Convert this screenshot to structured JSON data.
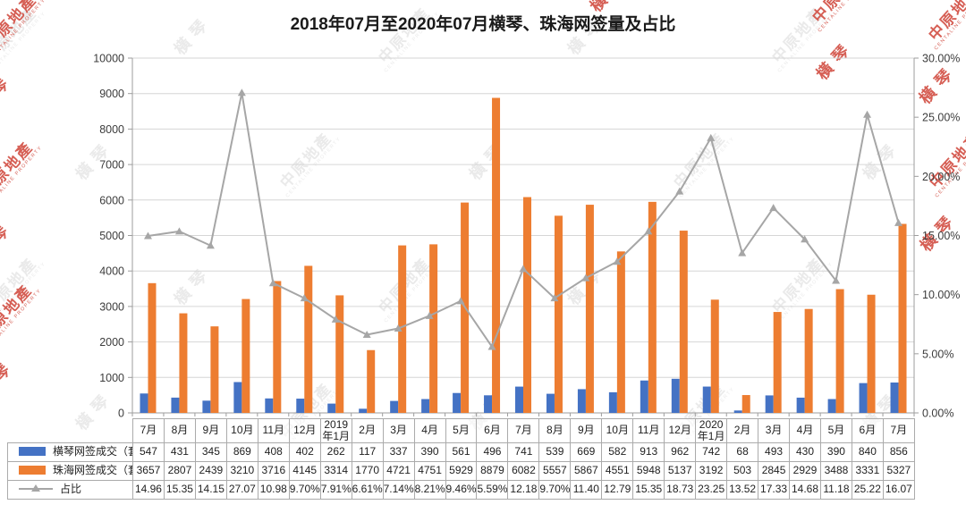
{
  "title": "2018年07月至2020年07月横琴、珠海网签量及占比",
  "watermark": {
    "brand": "中原地產",
    "brand_sub": "CENTALINE PROPERTY",
    "extra": "橫琴"
  },
  "colors": {
    "hengqin_bar": "#4472c4",
    "zhuhai_bar": "#ed7d31",
    "ratio_line": "#a6a6a6",
    "grid": "#d6d6d6",
    "axis": "#9d9d9d",
    "axis_text": "#3c3c3c",
    "watermark_gray": "#eaeaea",
    "watermark_red": "#cf4438"
  },
  "chart_data": {
    "type": "bar",
    "title": "2018年07月至2020年07月横琴、珠海网签量及占比",
    "categories": [
      "7月",
      "8月",
      "9月",
      "10月",
      "11月",
      "12月",
      "2019年1月",
      "2月",
      "3月",
      "4月",
      "5月",
      "6月",
      "7月",
      "8月",
      "9月",
      "10月",
      "11月",
      "12月",
      "2020年1月",
      "2月",
      "3月",
      "4月",
      "5月",
      "6月",
      "7月"
    ],
    "series": [
      {
        "name": "横琴网签成交（套）",
        "type": "bar",
        "color_key": "hengqin_bar",
        "values": [
          547,
          431,
          345,
          869,
          408,
          402,
          262,
          117,
          337,
          390,
          561,
          496,
          741,
          539,
          669,
          582,
          913,
          962,
          742,
          68,
          493,
          430,
          390,
          840,
          856
        ]
      },
      {
        "name": "珠海网签成交（套）",
        "type": "bar",
        "color_key": "zhuhai_bar",
        "values": [
          3657,
          2807,
          2439,
          3210,
          3716,
          4145,
          3314,
          1770,
          4721,
          4751,
          5929,
          8879,
          6082,
          5557,
          5867,
          4551,
          5948,
          5137,
          3192,
          503,
          2845,
          2929,
          3488,
          3331,
          5327
        ]
      },
      {
        "name": "占比",
        "type": "line",
        "axis": "right",
        "color_key": "ratio_line",
        "values": [
          14.96,
          15.35,
          14.15,
          27.07,
          10.98,
          9.7,
          7.91,
          6.61,
          7.14,
          8.21,
          9.46,
          5.59,
          12.18,
          9.7,
          11.4,
          12.79,
          15.35,
          18.73,
          23.25,
          13.52,
          17.33,
          14.68,
          11.18,
          25.22,
          16.07
        ],
        "values_display": [
          "14.96",
          "15.35",
          "14.15",
          "27.07",
          "10.98",
          "9.70%",
          "7.91%",
          "6.61%",
          "7.14%",
          "8.21%",
          "9.46%",
          "5.59%",
          "12.18",
          "9.70%",
          "11.40",
          "12.79",
          "15.35",
          "18.73",
          "23.25",
          "13.52",
          "17.33",
          "14.68",
          "11.18",
          "25.22",
          "16.07"
        ]
      }
    ],
    "left_axis": {
      "min": 0,
      "max": 10000,
      "step": 1000,
      "ticks": [
        "10000",
        "9000",
        "8000",
        "7000",
        "6000",
        "5000",
        "4000",
        "3000",
        "2000",
        "1000",
        "0"
      ]
    },
    "right_axis": {
      "min": 0,
      "max": 30,
      "step": 5,
      "ticks": [
        "30.00%",
        "25.00%",
        "20.00%",
        "15.00%",
        "10.00%",
        "5.00%",
        "0.00%"
      ]
    },
    "grid": "horizontal",
    "legend_position": "table-left"
  }
}
